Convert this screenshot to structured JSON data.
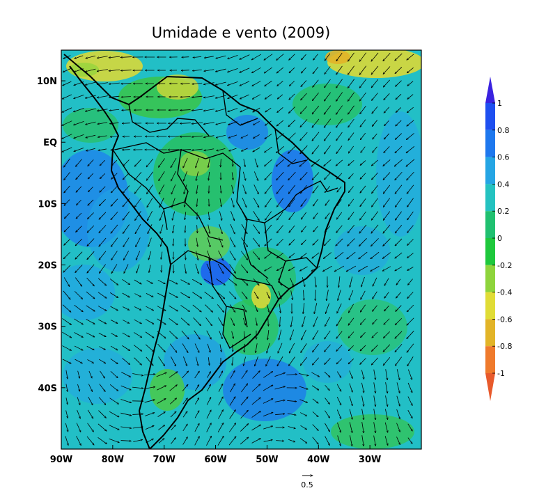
{
  "map": {
    "title": "Umidade e vento (2009)",
    "x_ticks": [
      {
        "lon": -90,
        "label": "90W"
      },
      {
        "lon": -80,
        "label": "80W"
      },
      {
        "lon": -70,
        "label": "70W"
      },
      {
        "lon": -60,
        "label": "60W"
      },
      {
        "lon": -50,
        "label": "50W"
      },
      {
        "lon": -40,
        "label": "40W"
      },
      {
        "lon": -30,
        "label": "30W"
      }
    ],
    "y_ticks": [
      {
        "lat": 10,
        "label": "10N"
      },
      {
        "lat": 0,
        "label": "EQ"
      },
      {
        "lat": -10,
        "label": "10S"
      },
      {
        "lat": -20,
        "label": "20S"
      },
      {
        "lat": -30,
        "label": "30S"
      },
      {
        "lat": -40,
        "label": "40S"
      }
    ],
    "lon_range": [
      -90,
      -20
    ],
    "lat_range": [
      -50,
      15
    ],
    "vector_reference": {
      "label": "0.5",
      "value": 0.5
    }
  },
  "colorbar": {
    "levels": [
      "1",
      "0.8",
      "0.6",
      "0.4",
      "0.2",
      "0",
      "-0.2",
      "-0.4",
      "-0.6",
      "-0.8",
      "-1"
    ],
    "colors": [
      "#3a22e0",
      "#1e4ff0",
      "#1e78ee",
      "#25a5e4",
      "#24c2c0",
      "#20c070",
      "#1ec83c",
      "#8ed43c",
      "#e0dc36",
      "#e2b428",
      "#ef7a2c",
      "#e85a2c"
    ]
  },
  "chart_data": {
    "type": "heatmap",
    "title": "Umidade e vento (2009)",
    "xlabel": "",
    "ylabel": "",
    "x_ticks": [
      "90W",
      "80W",
      "70W",
      "60W",
      "50W",
      "40W",
      "30W"
    ],
    "y_ticks": [
      "10N",
      "EQ",
      "10S",
      "20S",
      "30S",
      "40S"
    ],
    "xlim": [
      -90,
      -20
    ],
    "ylim": [
      -50,
      15
    ],
    "colorbar_range": [
      -1,
      1
    ],
    "colorbar_ticks": [
      1,
      0.8,
      0.6,
      0.4,
      0.2,
      0,
      -0.2,
      -0.4,
      -0.6,
      -0.8,
      -1
    ],
    "overlay": "wind vectors",
    "vector_reference": 0.5
  }
}
